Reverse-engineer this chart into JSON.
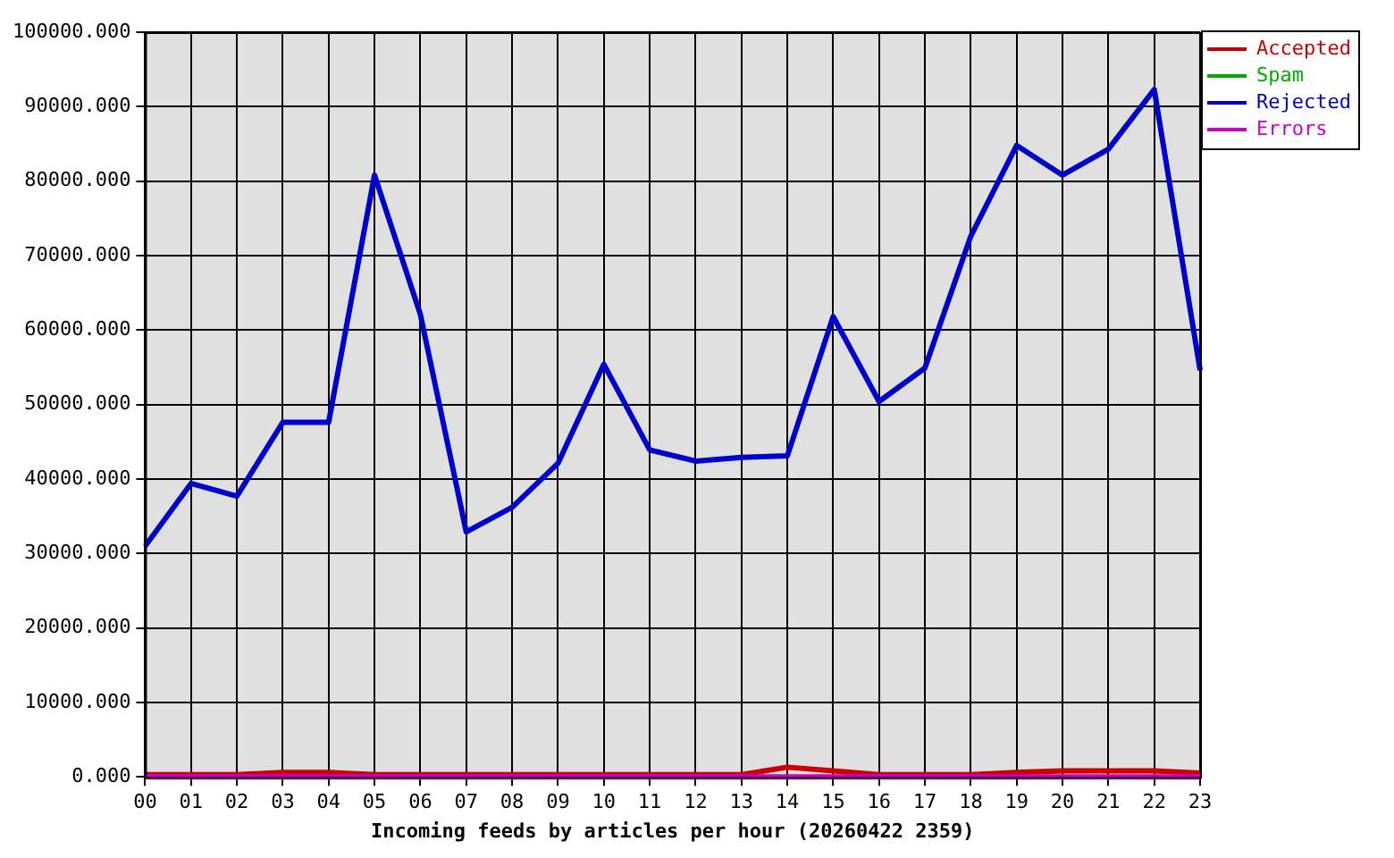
{
  "chart_data": {
    "type": "line",
    "xlabel": "Incoming feeds by articles per hour (20260422 2359)",
    "categories": [
      "00",
      "01",
      "02",
      "03",
      "04",
      "05",
      "06",
      "07",
      "08",
      "09",
      "10",
      "11",
      "12",
      "13",
      "14",
      "15",
      "16",
      "17",
      "18",
      "19",
      "20",
      "21",
      "22",
      "23"
    ],
    "series": [
      {
        "name": "Accepted",
        "color": "#cc0000",
        "values": [
          300,
          300,
          300,
          600,
          600,
          300,
          300,
          300,
          300,
          300,
          300,
          300,
          300,
          300,
          1300,
          800,
          300,
          300,
          300,
          600,
          800,
          800,
          800,
          500
        ]
      },
      {
        "name": "Spam",
        "color": "#00aa00",
        "values": [
          null,
          null,
          null,
          null,
          null,
          null,
          null,
          null,
          null,
          null,
          null,
          null,
          null,
          null,
          null,
          null,
          null,
          null,
          null,
          null,
          null,
          null,
          null,
          null
        ]
      },
      {
        "name": "Rejected",
        "color": "#0000cc",
        "values": [
          31000,
          39400,
          37700,
          47600,
          47600,
          80800,
          62100,
          32900,
          36200,
          42100,
          55400,
          43900,
          42400,
          42900,
          43100,
          61800,
          50400,
          54900,
          72600,
          84800,
          80800,
          84300,
          92300,
          54600
        ]
      },
      {
        "name": "Errors",
        "color": "#cc00cc",
        "values": [
          0,
          0,
          0,
          0,
          0,
          0,
          0,
          0,
          0,
          0,
          0,
          0,
          0,
          0,
          0,
          0,
          0,
          0,
          0,
          0,
          0,
          0,
          0,
          0
        ]
      }
    ],
    "ylim": [
      0,
      100000
    ],
    "yticks": [
      {
        "value": 0,
        "label": "0.000"
      },
      {
        "value": 10000,
        "label": "10000.000"
      },
      {
        "value": 20000,
        "label": "20000.000"
      },
      {
        "value": 30000,
        "label": "30000.000"
      },
      {
        "value": 40000,
        "label": "40000.000"
      },
      {
        "value": 50000,
        "label": "50000.000"
      },
      {
        "value": 60000,
        "label": "60000.000"
      },
      {
        "value": 70000,
        "label": "70000.000"
      },
      {
        "value": 80000,
        "label": "80000.000"
      },
      {
        "value": 90000,
        "label": "90000.000"
      },
      {
        "value": 100000,
        "label": "100000.000"
      }
    ],
    "grid": true,
    "legend": "top right",
    "marker": "none"
  }
}
